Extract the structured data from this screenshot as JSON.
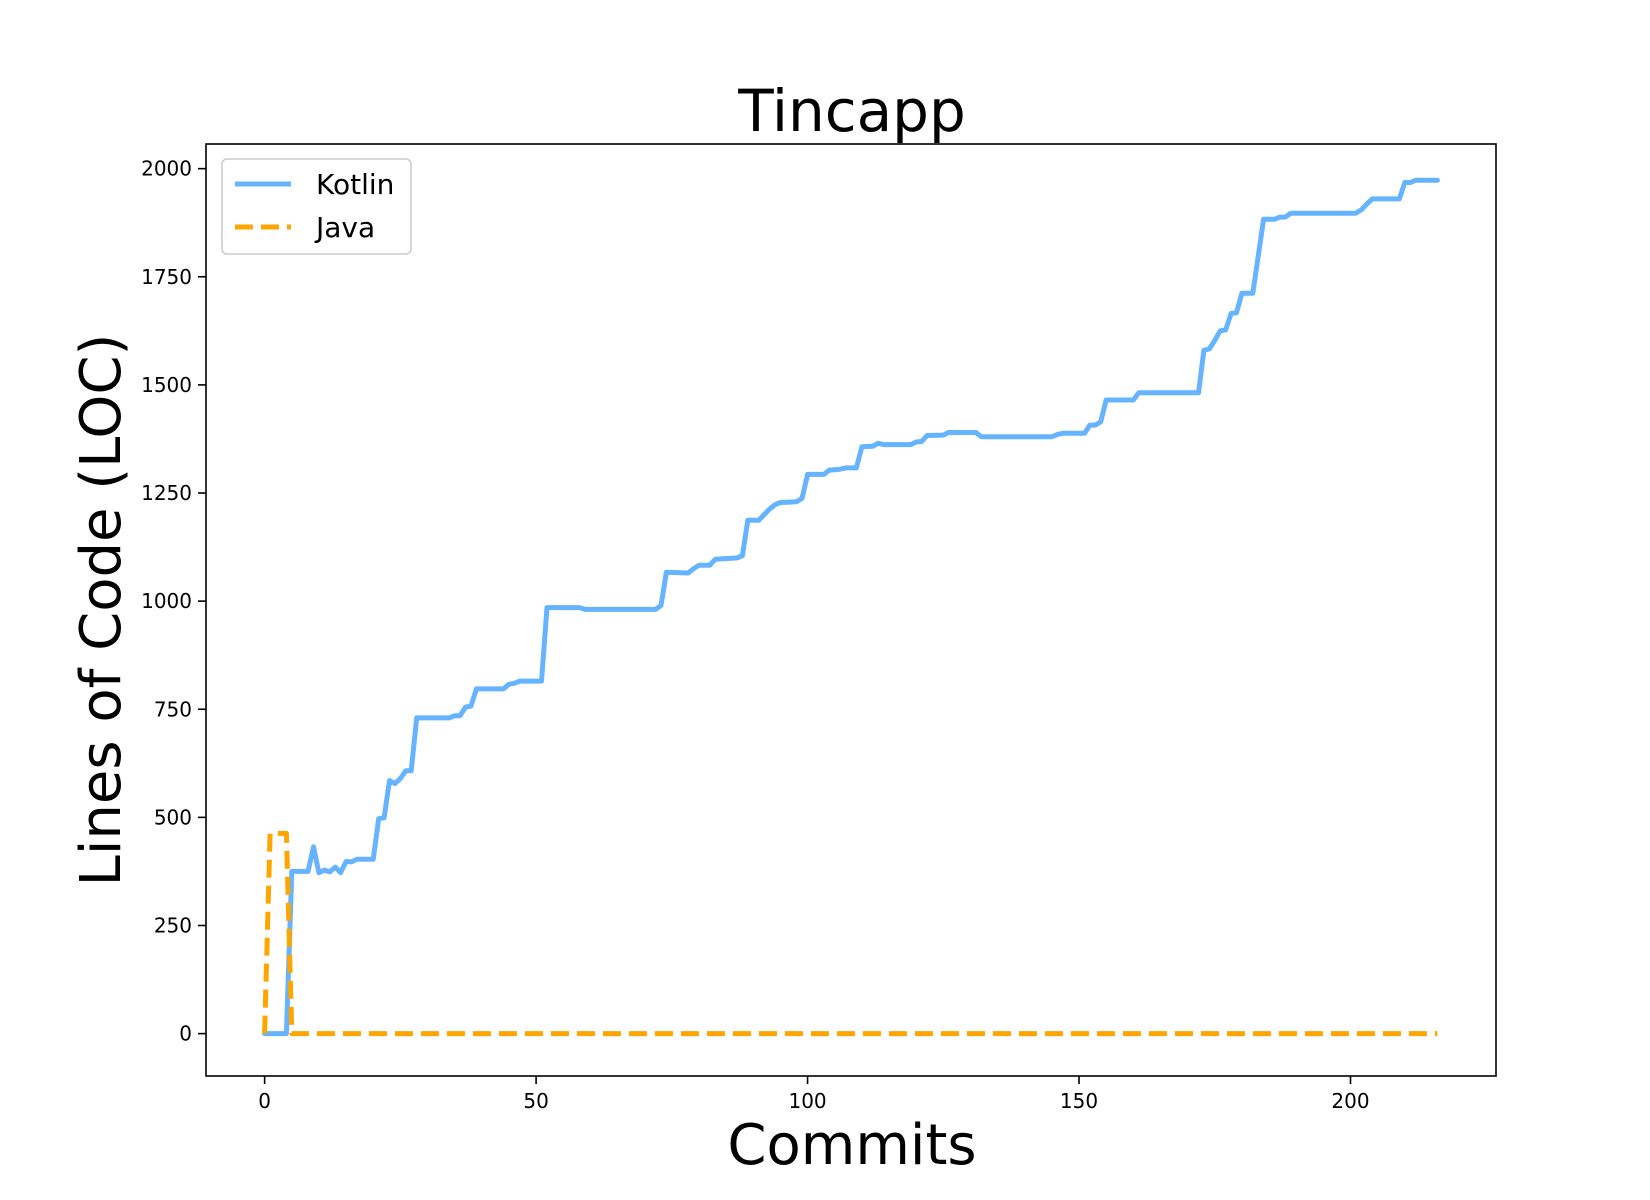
{
  "chart_data": {
    "type": "line",
    "title": "Tincapp",
    "xlabel": "Commits",
    "ylabel": "Lines of Code (LOC)",
    "xlim": [
      -10.8,
      226.8
    ],
    "ylim": [
      -98,
      2057
    ],
    "xticks": [
      0,
      50,
      100,
      150,
      200
    ],
    "yticks": [
      0,
      250,
      500,
      750,
      1000,
      1250,
      1500,
      1750,
      2000
    ],
    "legend_position": "upper-left",
    "grid": false,
    "series": [
      {
        "name": "Kotlin",
        "color": "#66b3ff",
        "style": "solid",
        "points": [
          [
            0,
            0
          ],
          [
            4,
            0
          ],
          [
            5,
            375
          ],
          [
            8,
            375
          ],
          [
            9,
            432
          ],
          [
            10,
            372
          ],
          [
            11,
            378
          ],
          [
            12,
            374
          ],
          [
            13,
            385
          ],
          [
            14,
            372
          ],
          [
            15,
            398
          ],
          [
            16,
            397
          ],
          [
            17,
            403
          ],
          [
            20,
            403
          ],
          [
            21,
            497
          ],
          [
            22,
            499
          ],
          [
            23,
            585
          ],
          [
            24,
            578
          ],
          [
            25,
            590
          ],
          [
            26,
            608
          ],
          [
            27,
            608
          ],
          [
            28,
            730
          ],
          [
            34,
            730
          ],
          [
            35,
            735
          ],
          [
            36,
            735
          ],
          [
            37,
            755
          ],
          [
            38,
            757
          ],
          [
            39,
            797
          ],
          [
            44,
            797
          ],
          [
            45,
            808
          ],
          [
            46,
            810
          ],
          [
            47,
            815
          ],
          [
            51,
            815
          ],
          [
            52,
            985
          ],
          [
            58,
            985
          ],
          [
            59,
            981
          ],
          [
            72,
            981
          ],
          [
            73,
            990
          ],
          [
            74,
            1067
          ],
          [
            78,
            1065
          ],
          [
            79,
            1075
          ],
          [
            80,
            1083
          ],
          [
            82,
            1083
          ],
          [
            83,
            1097
          ],
          [
            87,
            1100
          ],
          [
            88,
            1105
          ],
          [
            89,
            1187
          ],
          [
            91,
            1187
          ],
          [
            92,
            1200
          ],
          [
            93,
            1213
          ],
          [
            94,
            1223
          ],
          [
            95,
            1228
          ],
          [
            98,
            1230
          ],
          [
            99,
            1238
          ],
          [
            100,
            1293
          ],
          [
            103,
            1293
          ],
          [
            104,
            1303
          ],
          [
            106,
            1305
          ],
          [
            107,
            1308
          ],
          [
            109,
            1308
          ],
          [
            110,
            1357
          ],
          [
            112,
            1358
          ],
          [
            113,
            1365
          ],
          [
            114,
            1362
          ],
          [
            119,
            1362
          ],
          [
            120,
            1368
          ],
          [
            121,
            1369
          ],
          [
            122,
            1383
          ],
          [
            125,
            1384
          ],
          [
            126,
            1390
          ],
          [
            131,
            1390
          ],
          [
            132,
            1380
          ],
          [
            145,
            1380
          ],
          [
            146,
            1385
          ],
          [
            147,
            1388
          ],
          [
            151,
            1388
          ],
          [
            152,
            1407
          ],
          [
            153,
            1407
          ],
          [
            154,
            1415
          ],
          [
            155,
            1465
          ],
          [
            160,
            1465
          ],
          [
            161,
            1482
          ],
          [
            172,
            1482
          ],
          [
            173,
            1580
          ],
          [
            174,
            1583
          ],
          [
            175,
            1603
          ],
          [
            176,
            1625
          ],
          [
            177,
            1627
          ],
          [
            178,
            1665
          ],
          [
            179,
            1667
          ],
          [
            180,
            1712
          ],
          [
            182,
            1712
          ],
          [
            184,
            1883
          ],
          [
            186,
            1883
          ],
          [
            187,
            1888
          ],
          [
            188,
            1888
          ],
          [
            189,
            1897
          ],
          [
            201,
            1897
          ],
          [
            202,
            1905
          ],
          [
            203,
            1918
          ],
          [
            204,
            1930
          ],
          [
            209,
            1930
          ],
          [
            210,
            1968
          ],
          [
            211,
            1968
          ],
          [
            212,
            1973
          ],
          [
            216,
            1973
          ]
        ]
      },
      {
        "name": "Java",
        "color": "#ffa500",
        "style": "dashed",
        "points": [
          [
            0,
            0
          ],
          [
            1,
            463
          ],
          [
            4,
            463
          ],
          [
            5,
            0
          ],
          [
            216,
            0
          ]
        ]
      }
    ]
  }
}
